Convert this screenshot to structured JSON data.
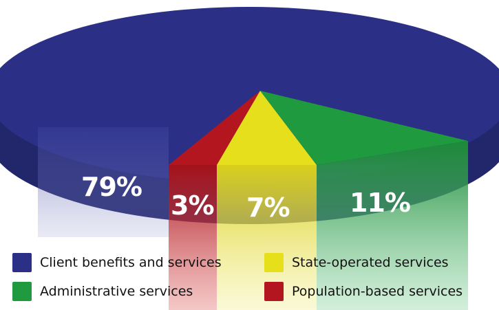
{
  "chart_data": {
    "type": "pie",
    "slices": [
      {
        "label": "Client benefits and services",
        "value": 79,
        "display": "79%",
        "color": "#2b2f86"
      },
      {
        "label": "Population-based services",
        "value": 3,
        "display": "3%",
        "color": "#b3161e"
      },
      {
        "label": "State-operated services",
        "value": 7,
        "display": "7%",
        "color": "#e6df1c"
      },
      {
        "label": "Administrative services",
        "value": 11,
        "display": "11%",
        "color": "#1f9a3e"
      }
    ],
    "legend": {
      "placement": "bottom",
      "items": [
        {
          "label": "Client benefits and services",
          "color": "#2b2f86"
        },
        {
          "label": "State-operated services",
          "color": "#e6df1c"
        },
        {
          "label": "Administrative services",
          "color": "#1f9a3e"
        },
        {
          "label": "Population-based services",
          "color": "#b3161e"
        }
      ]
    },
    "style": "3d-exploded"
  }
}
